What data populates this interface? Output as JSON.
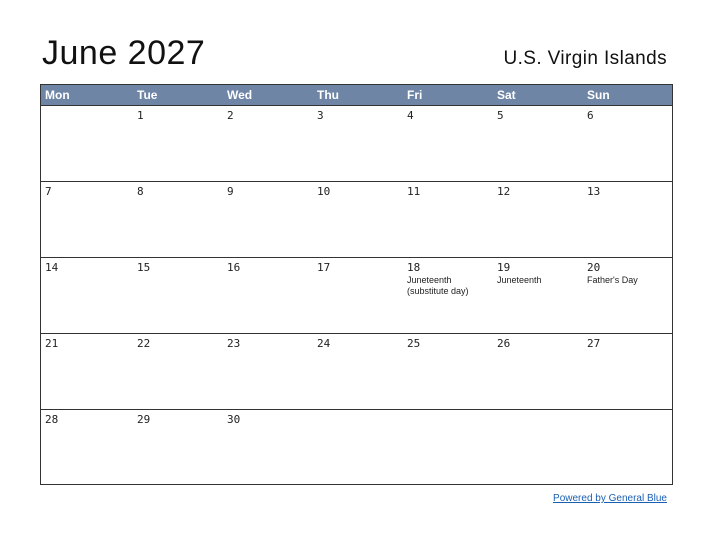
{
  "title": "June 2027",
  "region": "U.S. Virgin Islands",
  "weekday_headers": [
    "Mon",
    "Tue",
    "Wed",
    "Thu",
    "Fri",
    "Sat",
    "Sun"
  ],
  "weeks": [
    [
      {
        "day": ""
      },
      {
        "day": "1"
      },
      {
        "day": "2"
      },
      {
        "day": "3"
      },
      {
        "day": "4"
      },
      {
        "day": "5"
      },
      {
        "day": "6"
      }
    ],
    [
      {
        "day": "7"
      },
      {
        "day": "8"
      },
      {
        "day": "9"
      },
      {
        "day": "10"
      },
      {
        "day": "11"
      },
      {
        "day": "12"
      },
      {
        "day": "13"
      }
    ],
    [
      {
        "day": "14"
      },
      {
        "day": "15"
      },
      {
        "day": "16"
      },
      {
        "day": "17"
      },
      {
        "day": "18",
        "event": "Juneteenth (substitute day)"
      },
      {
        "day": "19",
        "event": "Juneteenth"
      },
      {
        "day": "20",
        "event": "Father's Day"
      }
    ],
    [
      {
        "day": "21"
      },
      {
        "day": "22"
      },
      {
        "day": "23"
      },
      {
        "day": "24"
      },
      {
        "day": "25"
      },
      {
        "day": "26"
      },
      {
        "day": "27"
      }
    ],
    [
      {
        "day": "28"
      },
      {
        "day": "29"
      },
      {
        "day": "30"
      },
      {
        "day": ""
      },
      {
        "day": ""
      },
      {
        "day": ""
      },
      {
        "day": ""
      }
    ]
  ],
  "footer_link": "Powered by General Blue",
  "colors": {
    "header_bg": "#6e85a5",
    "header_text": "#ffffff",
    "link": "#1a5fb4"
  }
}
